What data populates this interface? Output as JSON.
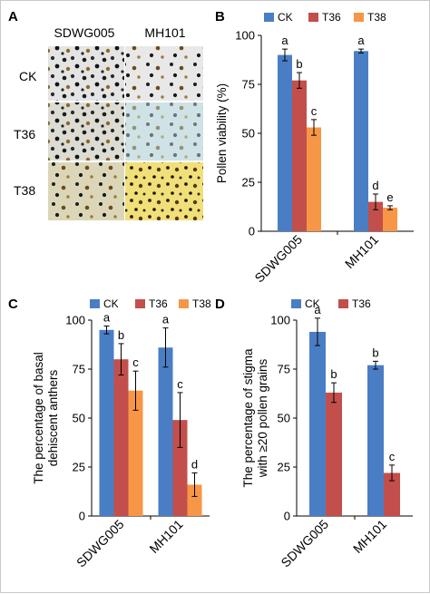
{
  "panel_labels": [
    "A",
    "B",
    "C",
    "D"
  ],
  "panel_a": {
    "columns": [
      "SDWG005",
      "MH101"
    ],
    "rows": [
      "CK",
      "T36",
      "T38"
    ]
  },
  "colors": {
    "CK": "#4a7ec4",
    "T36": "#c24f4b",
    "T38": "#f79646"
  },
  "chart_data": [
    {
      "type": "bar",
      "ylabel": "Pollen viability (%)",
      "xlabel": "",
      "ylim": [
        0,
        100
      ],
      "yticks": [
        0,
        25,
        50,
        75,
        100
      ],
      "grid": false,
      "legend": "top",
      "categories": [
        "SDWG005",
        "MH101"
      ],
      "series": [
        {
          "name": "CK",
          "values": [
            90,
            92
          ],
          "errors": [
            3,
            1
          ]
        },
        {
          "name": "T36",
          "values": [
            77,
            15
          ],
          "errors": [
            4,
            4
          ]
        },
        {
          "name": "T38",
          "values": [
            53,
            12
          ],
          "errors": [
            4,
            1
          ]
        }
      ],
      "annotations": [
        [
          "a",
          "b",
          "c"
        ],
        [
          "a",
          "d",
          "e"
        ]
      ]
    },
    {
      "type": "bar",
      "ylabel": "The percentage of basal dehiscent anthers",
      "xlabel": "",
      "ylim": [
        0,
        100
      ],
      "yticks": [
        0,
        25,
        50,
        75,
        100
      ],
      "grid": false,
      "legend": "top",
      "categories": [
        "SDWG005",
        "MH101"
      ],
      "series": [
        {
          "name": "CK",
          "values": [
            95,
            86
          ],
          "errors": [
            2,
            10
          ]
        },
        {
          "name": "T36",
          "values": [
            80,
            49
          ],
          "errors": [
            8,
            14
          ]
        },
        {
          "name": "T38",
          "values": [
            64,
            16
          ],
          "errors": [
            10,
            6
          ]
        }
      ],
      "annotations": [
        [
          "a",
          "b",
          "c"
        ],
        [
          "a",
          "c",
          "d"
        ]
      ]
    },
    {
      "type": "bar",
      "ylabel": "The percentage of stigma with ≥20 pollen grains",
      "xlabel": "",
      "ylim": [
        0,
        100
      ],
      "yticks": [
        0,
        25,
        50,
        75,
        100
      ],
      "grid": false,
      "legend": "top",
      "categories": [
        "SDWG005",
        "MH101"
      ],
      "series": [
        {
          "name": "CK",
          "values": [
            94,
            77
          ],
          "errors": [
            7,
            2
          ]
        },
        {
          "name": "T36",
          "values": [
            63,
            22
          ],
          "errors": [
            5,
            4
          ]
        }
      ],
      "annotations": [
        [
          "a",
          "b"
        ],
        [
          "b",
          "c"
        ]
      ]
    }
  ]
}
